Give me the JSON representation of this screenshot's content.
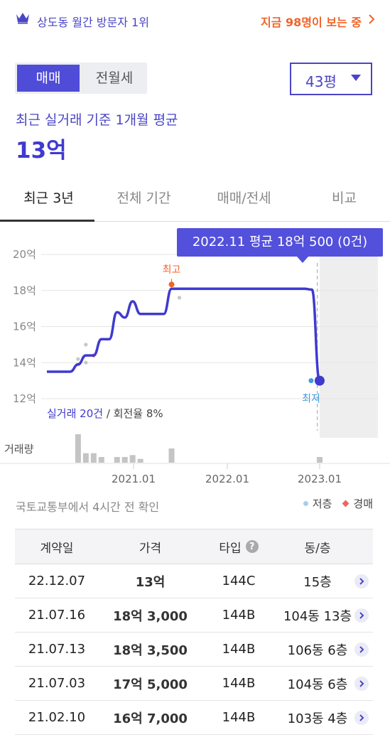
{
  "banner": {
    "rank_text": "상도동 월간 방문자 1위",
    "viewers_text": "지금 98명이 보는 중"
  },
  "trade_toggle": {
    "options": [
      "매매",
      "전월세"
    ],
    "selected": "매매"
  },
  "size_select": {
    "value": "43평"
  },
  "summary": {
    "label": "최근 실거래 기준 1개월 평균",
    "value": "13억"
  },
  "tabs": [
    {
      "label": "최근 3년",
      "active": true
    },
    {
      "label": "전체 기간",
      "active": false
    },
    {
      "label": "매매/전세",
      "active": false
    },
    {
      "label": "비교",
      "active": false
    }
  ],
  "tooltip": "2022.11 평균 18억 500 (0건)",
  "chart_data": {
    "type": "line",
    "y_ticks": [
      "20억",
      "18억",
      "16억",
      "14억",
      "12억"
    ],
    "y_tick_values": [
      20,
      18,
      16,
      14,
      12
    ],
    "ylim": [
      12,
      20
    ],
    "x_ticks": [
      "2021.01",
      "2022.01",
      "2023.01"
    ],
    "series": [
      {
        "x": [
          "2020.01",
          "2020.02",
          "2020.03",
          "2020.04",
          "2020.05",
          "2020.06",
          "2020.07",
          "2020.08",
          "2020.09",
          "2020.10",
          "2020.11",
          "2020.12",
          "2021.01",
          "2021.02",
          "2021.03",
          "2021.04",
          "2021.05",
          "2021.06",
          "2021.07",
          "2021.08",
          "2021.09",
          "2021.10",
          "2021.11",
          "2021.12",
          "2022.01",
          "2022.02",
          "2022.03",
          "2022.04",
          "2022.05",
          "2022.06",
          "2022.07",
          "2022.08",
          "2022.09",
          "2022.10",
          "2022.11",
          "2022.12"
        ],
        "values": [
          13.5,
          13.5,
          13.5,
          13.5,
          13.9,
          14.4,
          14.4,
          15.3,
          15.3,
          16.8,
          16.5,
          17.4,
          16.7,
          16.7,
          16.7,
          16.7,
          18.1,
          18.1,
          18.1,
          18.1,
          18.1,
          18.1,
          18.1,
          18.1,
          18.1,
          18.1,
          18.1,
          18.1,
          18.1,
          18.1,
          18.1,
          18.1,
          18.1,
          18.1,
          18.05,
          13.0
        ]
      }
    ],
    "annotations": {
      "high_label": "최고",
      "low_label": "최저"
    },
    "trade_summary": "실거래 20건",
    "turnover": "/ 회전율 8%",
    "volume_label": "거래량",
    "volume": [
      0,
      0,
      0,
      0,
      3,
      1,
      1,
      0.6,
      0,
      0.6,
      0.6,
      0.8,
      0.4,
      0,
      0,
      0,
      1.5,
      0,
      0,
      0,
      0,
      0,
      0,
      0,
      0,
      0,
      0,
      0,
      0,
      0,
      0,
      0,
      0,
      0,
      0,
      0.6
    ]
  },
  "source": "국토교통부에서 4시간 전 확인",
  "legend": {
    "low_floor": "저층",
    "auction": "경매"
  },
  "table": {
    "headers": [
      "계약일",
      "가격",
      "타입",
      "동/층"
    ],
    "help_icon_text": "?",
    "rows": [
      {
        "date": "22.12.07",
        "price": "13억",
        "type": "144C",
        "floor": "15층"
      },
      {
        "date": "21.07.16",
        "price": "18억 3,000",
        "type": "144B",
        "floor": "104동 13층"
      },
      {
        "date": "21.07.13",
        "price": "18억 3,500",
        "type": "144B",
        "floor": "106동 6층"
      },
      {
        "date": "21.07.03",
        "price": "17억 5,000",
        "type": "144B",
        "floor": "104동 6층"
      },
      {
        "date": "21.02.10",
        "price": "16억 7,000",
        "type": "144B",
        "floor": "103동 4층"
      }
    ]
  },
  "colors": {
    "accent": "#4f4cd8",
    "line": "#3f3ad0",
    "high": "#f0642a",
    "low": "#3f9be0",
    "orange": "#f0642a"
  }
}
